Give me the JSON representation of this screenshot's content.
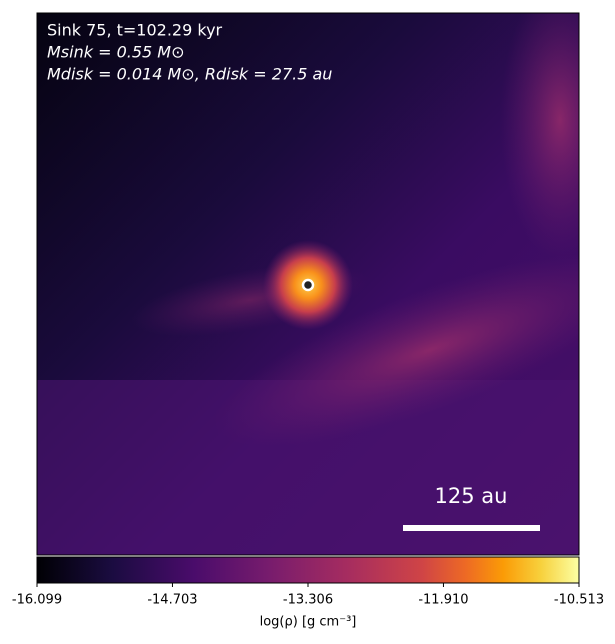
{
  "chart_data": {
    "type": "density-map",
    "annotations": [
      "Sink 75, t=102.29 kyr",
      "Msink = 0.55 M⊙",
      "Mdisk = 0.014 M⊙, Rdisk = 27.5 au"
    ],
    "scale_bar": "125 au",
    "colorbar_label": "log(ρ) [g cm⁻³]",
    "clim": [
      -16.099,
      -10.513
    ],
    "cticks": [
      -16.099,
      -14.703,
      -13.306,
      {
        "value": -11.91,
        "label": "-11.910"
      },
      -10.513
    ]
  }
}
